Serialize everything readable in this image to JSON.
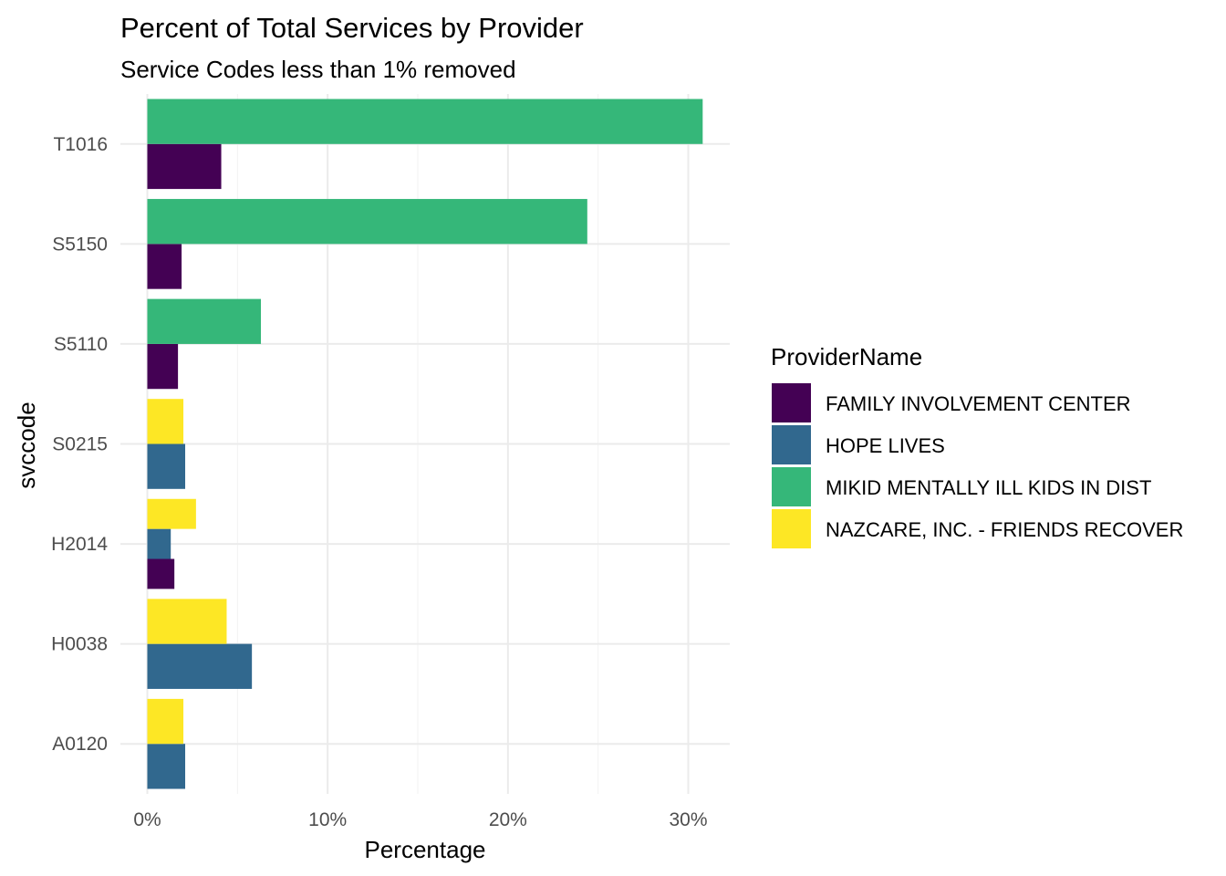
{
  "chart_data": {
    "type": "bar",
    "orientation": "horizontal",
    "position": "dodge",
    "title": "Percent of Total Services by Provider",
    "subtitle": "Service Codes less than 1%  removed",
    "xlabel": "Percentage",
    "ylabel": "svccode",
    "xlim": [
      0,
      0.32
    ],
    "x_ticks": [
      0,
      0.1,
      0.2,
      0.3
    ],
    "x_tick_labels": [
      "0%",
      "10%",
      "20%",
      "30%"
    ],
    "grid": true,
    "legend_position": "right",
    "legend_title": "ProviderName",
    "categories": [
      "A0120",
      "H0038",
      "H2014",
      "S0215",
      "S5110",
      "S5150",
      "T1016"
    ],
    "series": [
      {
        "name": "FAMILY INVOLVEMENT CENTER",
        "color": "#440154",
        "values": [
          null,
          null,
          0.015,
          null,
          0.017,
          0.019,
          0.041
        ]
      },
      {
        "name": "HOPE LIVES",
        "color": "#31688E",
        "values": [
          0.021,
          0.058,
          0.013,
          0.021,
          null,
          null,
          null
        ]
      },
      {
        "name": "MIKID MENTALLY ILL KIDS IN DIST",
        "color": "#35B779",
        "values": [
          null,
          null,
          null,
          null,
          0.063,
          0.244,
          0.308
        ]
      },
      {
        "name": "NAZCARE, INC. - FRIENDS RECOVER",
        "color": "#FDE725",
        "values": [
          0.02,
          0.044,
          0.027,
          0.02,
          null,
          null,
          null
        ]
      }
    ]
  }
}
